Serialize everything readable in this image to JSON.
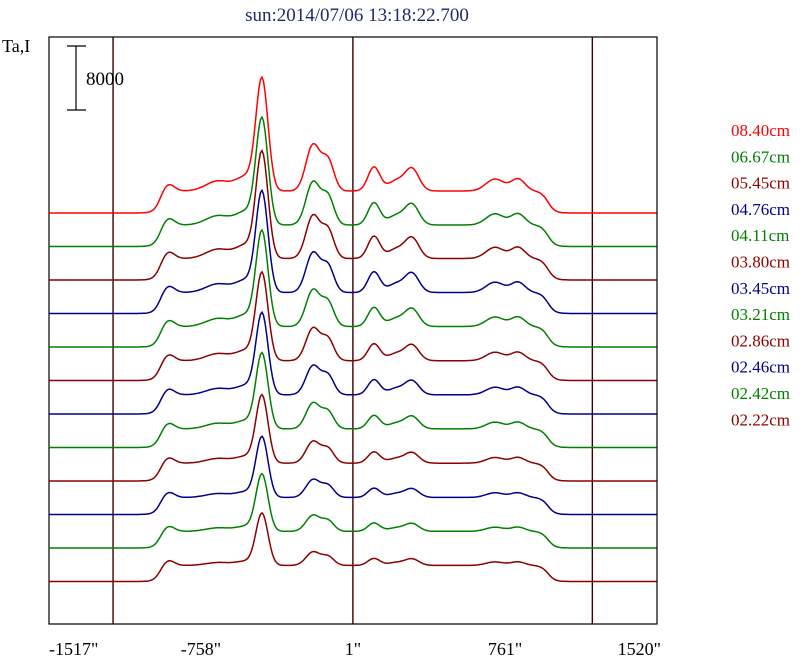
{
  "chart_data": {
    "type": "line",
    "title": "sun:2014/07/06 13:18:22.700",
    "ylabel": "Ta,I",
    "xlabel": "",
    "scale_bar_label": "8000",
    "x_ticks": [
      "-1517\"",
      "-758\"",
      "1\"",
      "761\"",
      "1520\""
    ],
    "x_tick_values": [
      -1517,
      -758,
      1,
      761,
      1520
    ],
    "xlim": [
      -1517,
      1520
    ],
    "reference_lines_x": [
      -1197,
      1,
      1197
    ],
    "grid": false,
    "legend_position": "right",
    "series": [
      {
        "name": "08.40cm",
        "color": "#ff0000",
        "peak_scale": 1.0
      },
      {
        "name": "06.67cm",
        "color": "#008000",
        "peak_scale": 0.95
      },
      {
        "name": "05.45cm",
        "color": "#8b0000",
        "peak_scale": 0.95
      },
      {
        "name": "04.76cm",
        "color": "#00008b",
        "peak_scale": 0.9
      },
      {
        "name": "04.11cm",
        "color": "#008000",
        "peak_scale": 0.85
      },
      {
        "name": "03.80cm",
        "color": "#8b0000",
        "peak_scale": 0.78
      },
      {
        "name": "03.45cm",
        "color": "#00008b",
        "peak_scale": 0.72
      },
      {
        "name": "03.21cm",
        "color": "#008000",
        "peak_scale": 0.66
      },
      {
        "name": "02.86cm",
        "color": "#8b0000",
        "peak_scale": 0.58
      },
      {
        "name": "02.46cm",
        "color": "#00008b",
        "peak_scale": 0.5
      },
      {
        "name": "02.42cm",
        "color": "#008000",
        "peak_scale": 0.46
      },
      {
        "name": "02.22cm",
        "color": "#8b0000",
        "peak_scale": 0.4
      }
    ]
  }
}
